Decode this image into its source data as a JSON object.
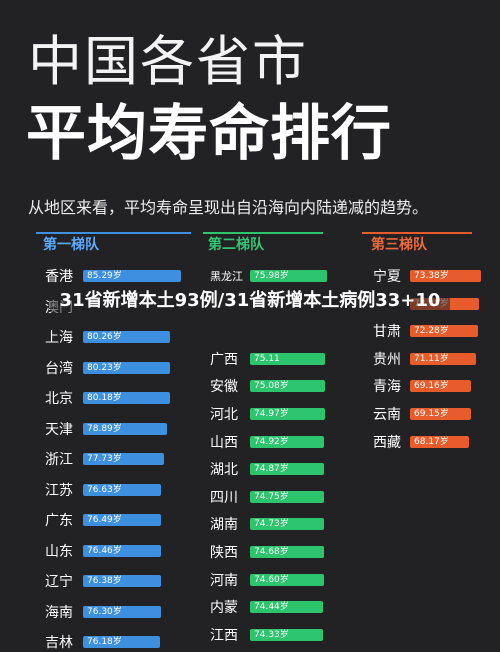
{
  "header": {
    "title_line1": "中国各省市",
    "title_line2": "平均寿命排行",
    "subtitle": "从地区来看，平均寿命呈现出自沿海向内陆递减的趋势。"
  },
  "overlay_caption": "31省新增本土93例/31省新增本土病例33+10",
  "colors": {
    "tier1": "#3d8fe0",
    "tier2": "#2cc46c",
    "tier3": "#e85c2c",
    "tier1_title": "#5aa8ff",
    "tier2_title": "#34c474",
    "tier3_title": "#ef6a3a"
  },
  "chart_data": {
    "type": "bar",
    "unit": "岁",
    "series": [
      {
        "name": "第一梯队",
        "categories": [
          "香港",
          "澳门",
          "上海",
          "台湾",
          "北京",
          "天津",
          "浙江",
          "江苏",
          "广东",
          "山东",
          "辽宁",
          "海南",
          "吉林"
        ],
        "values": [
          85.29,
          null,
          80.26,
          80.23,
          80.18,
          78.89,
          77.73,
          76.63,
          76.49,
          76.46,
          76.38,
          76.3,
          76.18
        ],
        "labels": [
          "85.29岁",
          "",
          "80.26岁",
          "80.23岁",
          "80.18岁",
          "78.89岁",
          "77.73岁",
          "76.63岁",
          "76.49岁",
          "76.46岁",
          "76.38岁",
          "76.30岁",
          "76.18岁"
        ]
      },
      {
        "name": "第二梯队",
        "categories": [
          "黑龙江",
          "",
          "",
          "广西",
          "安徽",
          "河北",
          "山西",
          "湖北",
          "四川",
          "湖南",
          "陕西",
          "河南",
          "内蒙",
          "江西"
        ],
        "values": [
          75.98,
          null,
          null,
          75.11,
          75.08,
          74.97,
          74.92,
          74.87,
          74.75,
          74.73,
          74.68,
          74.6,
          74.44,
          74.33
        ],
        "labels": [
          "75.98岁",
          "",
          "",
          "75.11",
          "75.08岁",
          "74.97岁",
          "74.92岁",
          "74.87岁",
          "74.75岁",
          "74.73岁",
          "74.68岁",
          "74.60岁",
          "74.44岁",
          "74.33岁"
        ]
      },
      {
        "name": "第三梯队",
        "categories": [
          "宁夏",
          "",
          "甘肃",
          "贵州",
          "青海",
          "云南",
          "西藏"
        ],
        "values": [
          73.38,
          72.35,
          72.28,
          71.11,
          69.16,
          69.15,
          68.17
        ],
        "labels": [
          "73.38岁",
          "72.35岁",
          "72.28岁",
          "71.11岁",
          "69.16岁",
          "69.15岁",
          "68.17岁"
        ]
      }
    ]
  }
}
